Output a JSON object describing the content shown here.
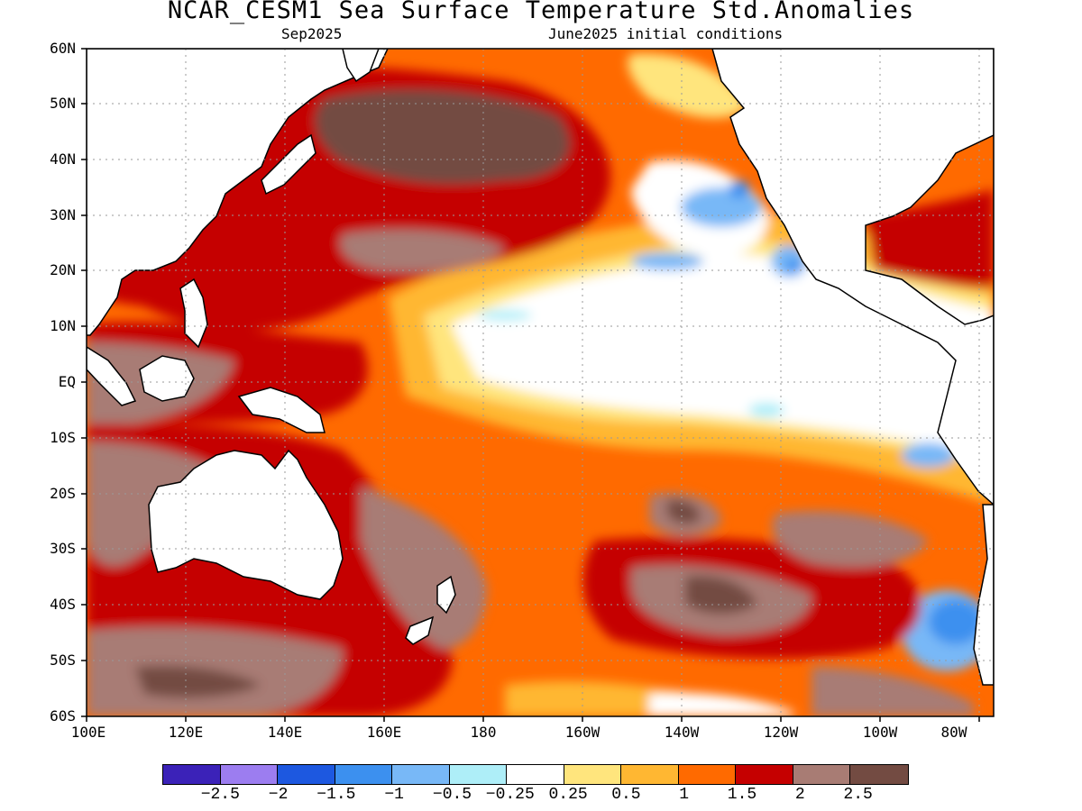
{
  "header": {
    "title": "NCAR_CESM1 Sea Surface Temperature Std.Anomalies",
    "valid_month": "Sep2025",
    "init": "June2025 initial conditions"
  },
  "axes": {
    "lat_labels": [
      "60N",
      "50N",
      "40N",
      "30N",
      "20N",
      "10N",
      "EQ",
      "10S",
      "20S",
      "30S",
      "40S",
      "50S",
      "60S"
    ],
    "lon_labels": [
      "100E",
      "120E",
      "140E",
      "160E",
      "180",
      "160W",
      "140W",
      "120W",
      "100W",
      "80W"
    ]
  },
  "colorbar": {
    "colors": [
      "#3b22b8",
      "#9c7df0",
      "#1d58e0",
      "#3c90ef",
      "#78b8f7",
      "#aeeef8",
      "#ffffff",
      "#ffe57d",
      "#ffb732",
      "#ff6a00",
      "#c50000",
      "#a87c74",
      "#734b42"
    ],
    "labels": [
      "−2.5",
      "−2",
      "−1.5",
      "−1",
      "−0.5",
      "−0.25",
      "0.25",
      "0.5",
      "1",
      "1.5",
      "2",
      "2.5"
    ]
  }
}
